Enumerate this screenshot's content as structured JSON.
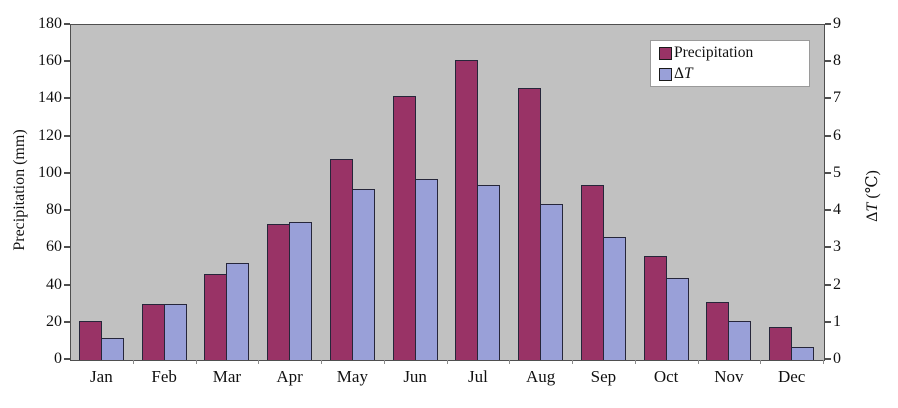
{
  "chart_data": {
    "type": "bar",
    "title": "",
    "categories": [
      "Jan",
      "Feb",
      "Mar",
      "Apr",
      "May",
      "Jun",
      "Jul",
      "Aug",
      "Sep",
      "Oct",
      "Nov",
      "Dec"
    ],
    "series": [
      {
        "key": "precipitation",
        "name": "Precipitation",
        "axis": "left",
        "color": "#993366",
        "values": [
          21,
          30,
          46,
          73,
          108,
          142,
          161,
          146,
          94,
          56,
          31,
          18
        ]
      },
      {
        "key": "delta-t",
        "name": "ΔT",
        "axis": "right",
        "color": "#99a0d8",
        "values": [
          0.6,
          1.5,
          2.6,
          3.7,
          4.6,
          4.85,
          4.7,
          4.2,
          3.3,
          2.2,
          1.05,
          0.35
        ]
      }
    ],
    "left_axis": {
      "label": "Precipitation (mm)",
      "min": 0,
      "max": 180,
      "step": 20,
      "ticks": [
        0,
        20,
        40,
        60,
        80,
        100,
        120,
        140,
        160,
        180
      ]
    },
    "right_axis": {
      "label_delta": "Δ",
      "label_t": "T",
      "label_unit": " (℃)",
      "min": 0,
      "max": 9,
      "step": 1,
      "ticks": [
        0,
        1,
        2,
        3,
        4,
        5,
        6,
        7,
        8,
        9
      ]
    },
    "legend": {
      "position": "top-right",
      "items": [
        {
          "label": "Precipitation",
          "color": "#993366"
        },
        {
          "label_delta": "Δ",
          "label_t": "T",
          "color": "#99a0d8"
        }
      ]
    },
    "plot_bg": "#c1c1c1",
    "grid": false
  }
}
